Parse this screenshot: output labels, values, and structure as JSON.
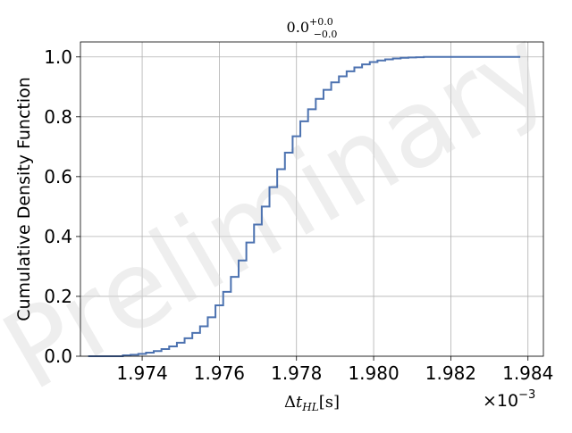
{
  "chart_data": {
    "type": "line",
    "step": true,
    "title": {
      "base": "0.0",
      "sup": "+0.0",
      "sub": "−0.0"
    },
    "xlabel": {
      "delta": "Δ",
      "var": "t",
      "sub": "HL",
      "unit": "[s]"
    },
    "ylabel": "Cumulative Density Function",
    "x_offset_text": {
      "times": "×",
      "base": "10",
      "exp": "−3"
    },
    "watermark": "Preliminary",
    "xlim": [
      1.9724,
      1.9844
    ],
    "ylim": [
      0.0,
      1.05
    ],
    "xticks": [
      1.974,
      1.976,
      1.978,
      1.98,
      1.982,
      1.984
    ],
    "xtick_labels": [
      "1.974",
      "1.976",
      "1.978",
      "1.980",
      "1.982",
      "1.984"
    ],
    "yticks": [
      0.0,
      0.2,
      0.4,
      0.6,
      0.8,
      1.0
    ],
    "ytick_labels": [
      "0.0",
      "0.2",
      "0.4",
      "0.6",
      "0.8",
      "1.0"
    ],
    "grid": true,
    "line_color": "#4c72b0",
    "x": [
      1.9726,
      1.9735,
      1.9737,
      1.9739,
      1.9741,
      1.9743,
      1.9745,
      1.9747,
      1.9749,
      1.9751,
      1.9753,
      1.9755,
      1.9757,
      1.9759,
      1.9761,
      1.9763,
      1.9765,
      1.9767,
      1.9769,
      1.9771,
      1.9773,
      1.9775,
      1.9777,
      1.9779,
      1.9781,
      1.9783,
      1.9785,
      1.9787,
      1.9789,
      1.9791,
      1.9793,
      1.9795,
      1.9797,
      1.9799,
      1.9801,
      1.9803,
      1.9805,
      1.9807,
      1.9809,
      1.9811,
      1.9813,
      1.9815,
      1.9817,
      1.9819,
      1.9821,
      1.9823,
      1.9825,
      1.9827,
      1.9838
    ],
    "y": [
      0.0,
      0.003,
      0.005,
      0.008,
      0.012,
      0.017,
      0.024,
      0.033,
      0.045,
      0.06,
      0.078,
      0.1,
      0.13,
      0.17,
      0.215,
      0.265,
      0.32,
      0.38,
      0.44,
      0.5,
      0.565,
      0.625,
      0.68,
      0.735,
      0.785,
      0.825,
      0.86,
      0.89,
      0.915,
      0.935,
      0.952,
      0.965,
      0.975,
      0.983,
      0.988,
      0.992,
      0.995,
      0.997,
      0.998,
      0.999,
      1.0,
      1.0,
      1.0,
      1.0,
      1.0,
      1.0,
      1.0,
      1.0,
      1.0
    ]
  }
}
